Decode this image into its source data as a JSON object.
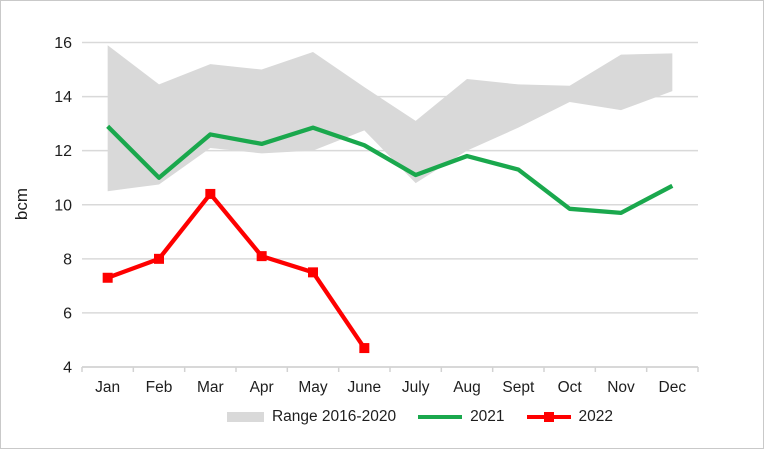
{
  "chart_data": {
    "type": "line",
    "title": "",
    "ylabel": "bcm",
    "categories": [
      "Jan",
      "Feb",
      "Mar",
      "Apr",
      "May",
      "June",
      "July",
      "Aug",
      "Sept",
      "Oct",
      "Nov",
      "Dec"
    ],
    "ylim": [
      4,
      16
    ],
    "yticks": [
      4,
      6,
      8,
      10,
      12,
      14,
      16
    ],
    "grid": true,
    "legend_position": "bottom",
    "series": [
      {
        "name": "Range 2016-2020",
        "type": "band",
        "color": "#d9d9d9",
        "low": [
          10.5,
          10.75,
          12.1,
          11.9,
          12.0,
          12.75,
          10.8,
          12.0,
          12.85,
          13.8,
          13.5,
          14.2
        ],
        "high": [
          15.9,
          14.45,
          15.2,
          15.0,
          15.65,
          14.35,
          13.1,
          14.65,
          14.45,
          14.4,
          15.55,
          15.6
        ]
      },
      {
        "name": "2021",
        "type": "line",
        "color": "#1aa84d",
        "values": [
          12.9,
          11.0,
          12.6,
          12.25,
          12.85,
          12.2,
          11.1,
          11.8,
          11.3,
          9.85,
          9.7,
          10.7
        ]
      },
      {
        "name": "2022",
        "type": "line",
        "marker": "square",
        "marker_size": 10,
        "color": "#fe0000",
        "values": [
          7.3,
          8.0,
          10.4,
          8.1,
          7.5,
          4.7
        ]
      }
    ],
    "grid_color": "#d9d9d9",
    "axis_color": "#d2d2d2",
    "text_color": "#1e1e1e"
  }
}
